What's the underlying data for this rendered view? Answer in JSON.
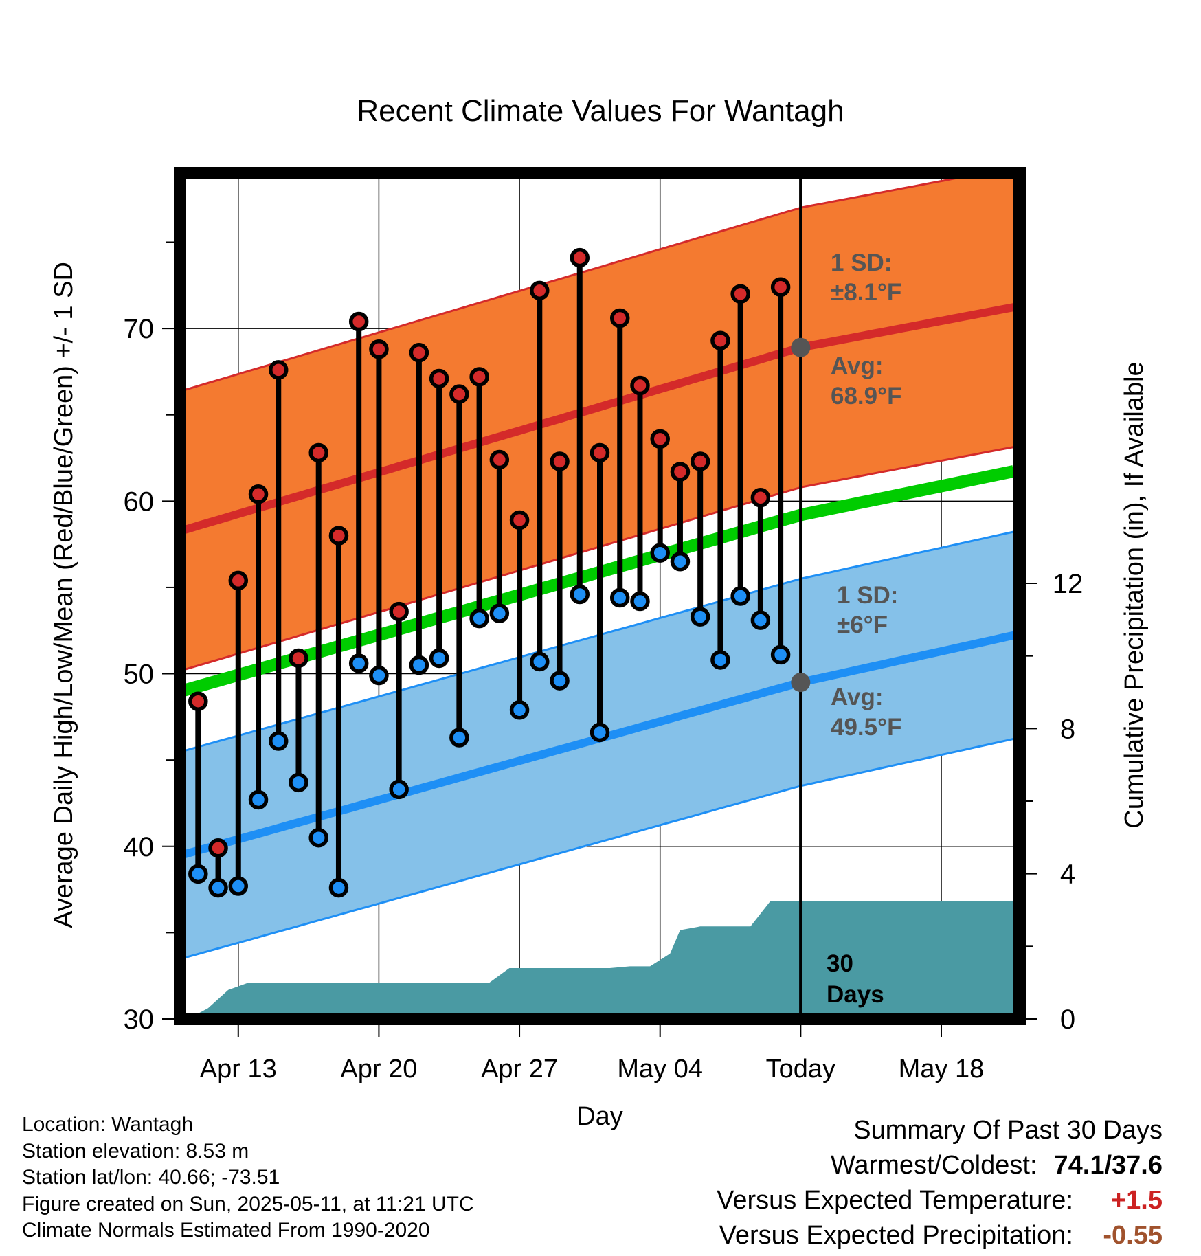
{
  "chart_data": {
    "type": "line",
    "title": "Recent Climate Values For Wantagh",
    "xlabel": "Day",
    "ylabel": "Average Daily High/Low/Mean (Red/Blue/Green) +/- 1 SD",
    "y2label": "Cumulative Precipitation (in), If Available",
    "ylim": [
      30,
      79
    ],
    "y2lim": [
      0,
      23.3
    ],
    "xlim": [
      -0.9,
      40.9
    ],
    "grid": true,
    "x_ticks": [
      {
        "x": 2,
        "label": "Apr 13"
      },
      {
        "x": 9,
        "label": "Apr 20"
      },
      {
        "x": 16,
        "label": "Apr 27"
      },
      {
        "x": 23,
        "label": "May 04"
      },
      {
        "x": 30,
        "label": "Today"
      },
      {
        "x": 37,
        "label": "May 18"
      }
    ],
    "y_ticks": [
      "30",
      "40",
      "50",
      "60",
      "70"
    ],
    "y2_ticks": [
      "0",
      "4",
      "8",
      "12"
    ],
    "today_x": 30,
    "daily_highs": [
      48.4,
      39.9,
      55.4,
      60.4,
      67.6,
      50.9,
      62.8,
      58.0,
      70.4,
      68.8,
      53.6,
      68.6,
      67.1,
      66.2,
      67.2,
      62.4,
      58.9,
      72.2,
      62.3,
      74.1,
      62.8,
      70.6,
      66.7,
      63.6,
      61.7,
      62.3,
      69.3,
      72.0,
      60.2,
      72.4
    ],
    "daily_lows": [
      38.4,
      37.6,
      37.7,
      42.7,
      46.1,
      43.7,
      40.5,
      37.6,
      50.6,
      49.9,
      43.3,
      50.5,
      50.9,
      46.3,
      53.2,
      53.5,
      47.9,
      50.7,
      49.6,
      54.6,
      46.6,
      54.4,
      54.2,
      57.0,
      56.5,
      53.3,
      50.8,
      54.5,
      53.1,
      51.1
    ],
    "normal_high": {
      "start": 58.4,
      "today": 68.9,
      "end": 71.3
    },
    "normal_high_sd": 8.1,
    "normal_low": {
      "start": 39.6,
      "today": 49.5,
      "end": 52.3
    },
    "normal_low_sd": 6.0,
    "normal_mean": {
      "start": 49.1,
      "today": 59.2,
      "end": 61.8
    },
    "precip_cumulative": [
      {
        "x": -0.5,
        "y": 0.0
      },
      {
        "x": 0.5,
        "y": 0.3
      },
      {
        "x": 1.5,
        "y": 0.8
      },
      {
        "x": 2.5,
        "y": 1.0
      },
      {
        "x": 14.5,
        "y": 1.0
      },
      {
        "x": 15.5,
        "y": 1.4
      },
      {
        "x": 20.5,
        "y": 1.4
      },
      {
        "x": 21.5,
        "y": 1.45
      },
      {
        "x": 22.5,
        "y": 1.45
      },
      {
        "x": 23.5,
        "y": 1.8
      },
      {
        "x": 24.0,
        "y": 2.45
      },
      {
        "x": 25.0,
        "y": 2.55
      },
      {
        "x": 27.5,
        "y": 2.55
      },
      {
        "x": 28.5,
        "y": 3.25
      },
      {
        "x": 40.9,
        "y": 3.25
      }
    ]
  },
  "annotations": {
    "high_sd_label": "1 SD:",
    "high_sd_value": "±8.1°F",
    "high_avg_label": "Avg:",
    "high_avg_value": "68.9°F",
    "low_sd_label": "1 SD:",
    "low_sd_value": "±6°F",
    "low_avg_label": "Avg:",
    "low_avg_value": "49.5°F",
    "days_label_1": "30",
    "days_label_2": "Days"
  },
  "station": {
    "location": "Location: Wantagh",
    "elevation": "Station elevation: 8.53 m",
    "latlon": "Station lat/lon: 40.66; -73.51",
    "created": "Figure created on Sun, 2025-05-11, at 11:21 UTC",
    "normals": "Climate Normals Estimated From 1990-2020"
  },
  "summary": {
    "title": "Summary Of Past 30 Days",
    "warmest_label": "Warmest/Coldest:",
    "warmest_value": "74.1/37.6",
    "temp_label": "Versus Expected Temperature:",
    "temp_value": "+1.5",
    "temp_color": "#cc2222",
    "precip_label": "Versus Expected Precipitation:",
    "precip_value": "-0.55",
    "precip_color": "#a0522d"
  },
  "colors": {
    "high_band": "#f47a30",
    "high_line": "#d42a2a",
    "low_band": "#85c1e9",
    "low_line": "#1e8ff5",
    "mean_line": "#00cc00",
    "precip": "#4a9aa3",
    "annotation": "#555555",
    "high_dot": "#d42a2a",
    "low_dot": "#1e8ff5"
  }
}
